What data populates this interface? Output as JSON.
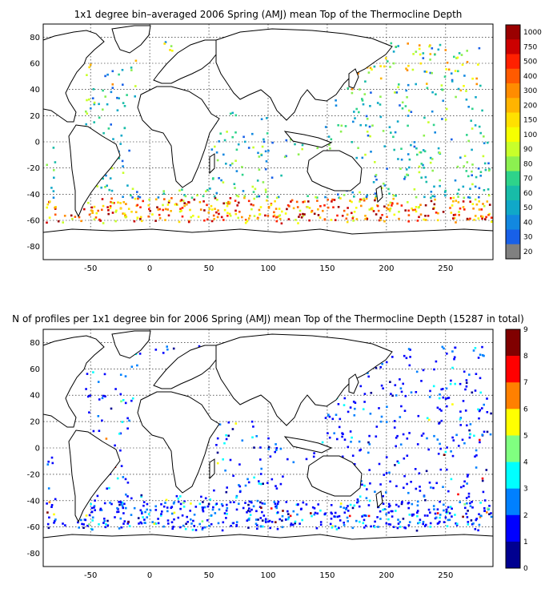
{
  "panels": [
    {
      "title": "1x1 degree bin–averaged 2006 Spring (AMJ) mean Top of the Thermocline Depth",
      "xticks": [
        "-50",
        "0",
        "50",
        "100",
        "150",
        "200",
        "250"
      ],
      "xtick_values": [
        -50,
        0,
        50,
        100,
        150,
        200,
        250
      ],
      "yticks": [
        "80",
        "60",
        "40",
        "20",
        "0",
        "-20",
        "-40",
        "-60",
        "-80"
      ],
      "ytick_values": [
        80,
        60,
        40,
        20,
        0,
        -20,
        -40,
        -60,
        -80
      ],
      "xlim": [
        -90,
        290
      ],
      "ylim": [
        -90,
        90
      ],
      "colorbar": {
        "labels": [
          "1000",
          "750",
          "500",
          "400",
          "300",
          "200",
          "150",
          "100",
          "90",
          "80",
          "70",
          "60",
          "50",
          "40",
          "30",
          "20"
        ],
        "colors": [
          "#9a0000",
          "#cc0000",
          "#ff2000",
          "#ff5a00",
          "#ff8c00",
          "#ffb400",
          "#ffe000",
          "#f6ff00",
          "#c8ff2a",
          "#8cf050",
          "#2ed38a",
          "#18bca8",
          "#10a8c8",
          "#1288e0",
          "#1860e8",
          "#808080"
        ]
      }
    },
    {
      "title": "N of profiles per 1x1 degree bin for 2006 Spring (AMJ) mean Top of the Thermocline Depth  (15287 in total)",
      "xticks": [
        "-50",
        "0",
        "50",
        "100",
        "150",
        "200",
        "250"
      ],
      "xtick_values": [
        -50,
        0,
        50,
        100,
        150,
        200,
        250
      ],
      "yticks": [
        "80",
        "60",
        "40",
        "20",
        "0",
        "-20",
        "-40",
        "-60",
        "-80"
      ],
      "ytick_values": [
        80,
        60,
        40,
        20,
        0,
        -20,
        -40,
        -60,
        -80
      ],
      "xlim": [
        -90,
        290
      ],
      "ylim": [
        -90,
        90
      ],
      "colorbar": {
        "labels": [
          "9",
          "8",
          "7",
          "6",
          "5",
          "4",
          "3",
          "2",
          "1",
          "0"
        ],
        "colors": [
          "#800000",
          "#ff0000",
          "#ff8000",
          "#ffff00",
          "#80ff80",
          "#00ffff",
          "#0080ff",
          "#0000ff",
          "#000090"
        ]
      }
    }
  ]
}
